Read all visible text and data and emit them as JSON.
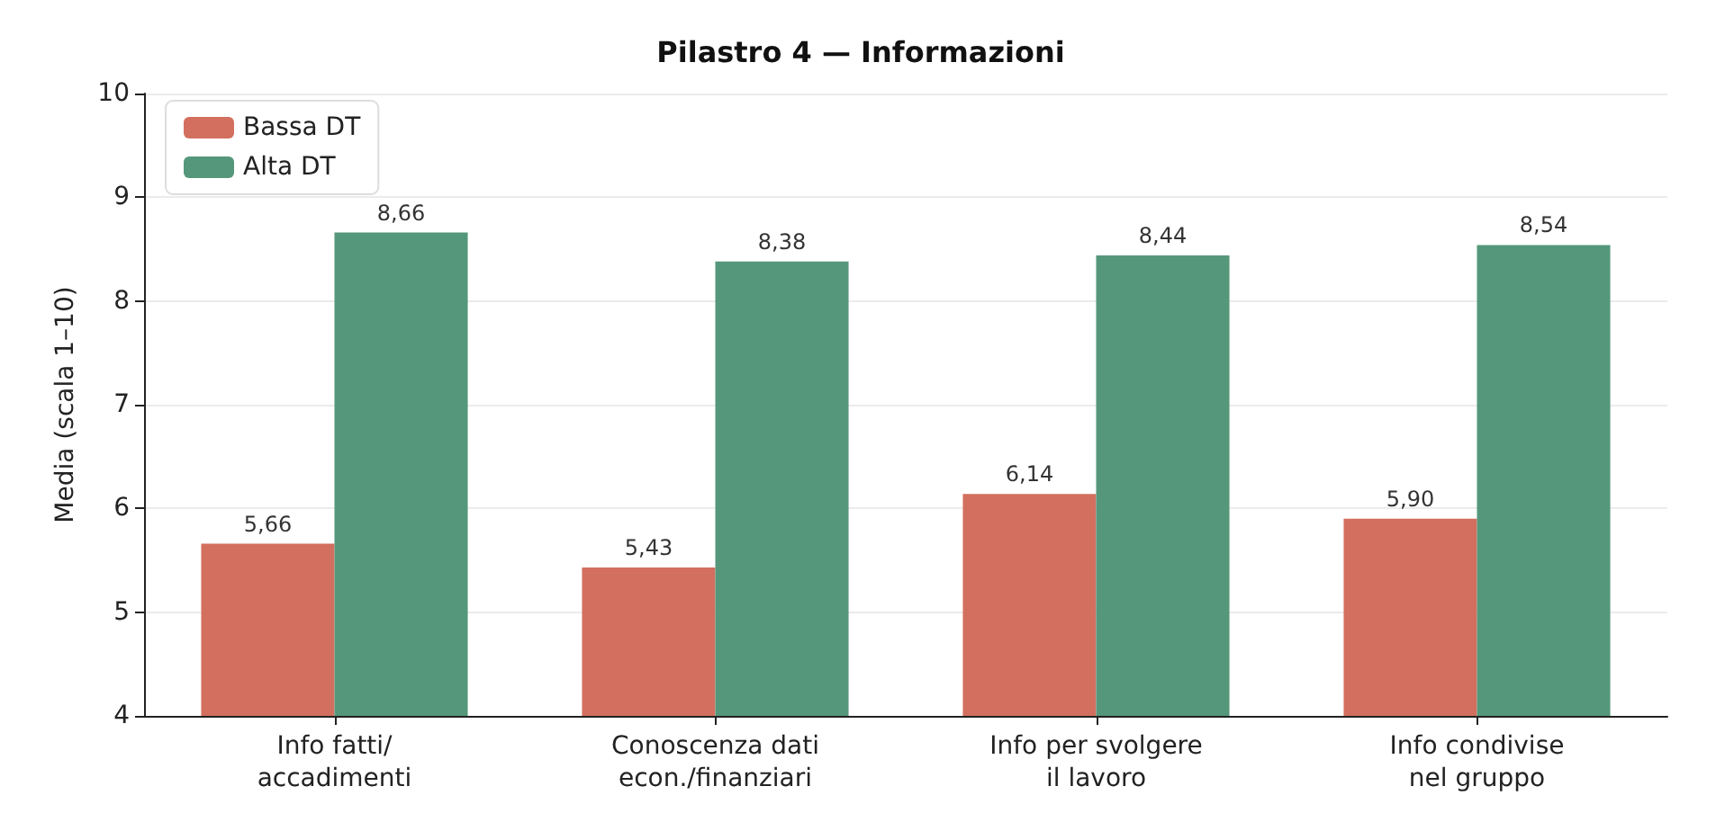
{
  "chart_data": {
    "type": "bar",
    "title": "Pilastro 4 — Informazioni",
    "ylabel": "Media (scala 1–10)",
    "categories": [
      "Info fatti/\naccadimenti",
      "Conoscenza dati\necon./finanziari",
      "Info per svolgere\nil lavoro",
      "Info condivise\nnel gruppo"
    ],
    "series": [
      {
        "name": "Bassa DT",
        "color": "#d36f5e",
        "values": [
          5.66,
          5.43,
          6.14,
          5.9
        ],
        "value_labels": [
          "5,66",
          "5,43",
          "6,14",
          "5,90"
        ]
      },
      {
        "name": "Alta DT",
        "color": "#55977a",
        "values": [
          8.66,
          8.38,
          8.44,
          8.54
        ],
        "value_labels": [
          "8,66",
          "8,38",
          "8,44",
          "8,54"
        ]
      }
    ],
    "ylim": [
      4,
      10
    ],
    "yticks": [
      4,
      5,
      6,
      7,
      8,
      9,
      10
    ],
    "grid": "y",
    "legend": "top left"
  }
}
